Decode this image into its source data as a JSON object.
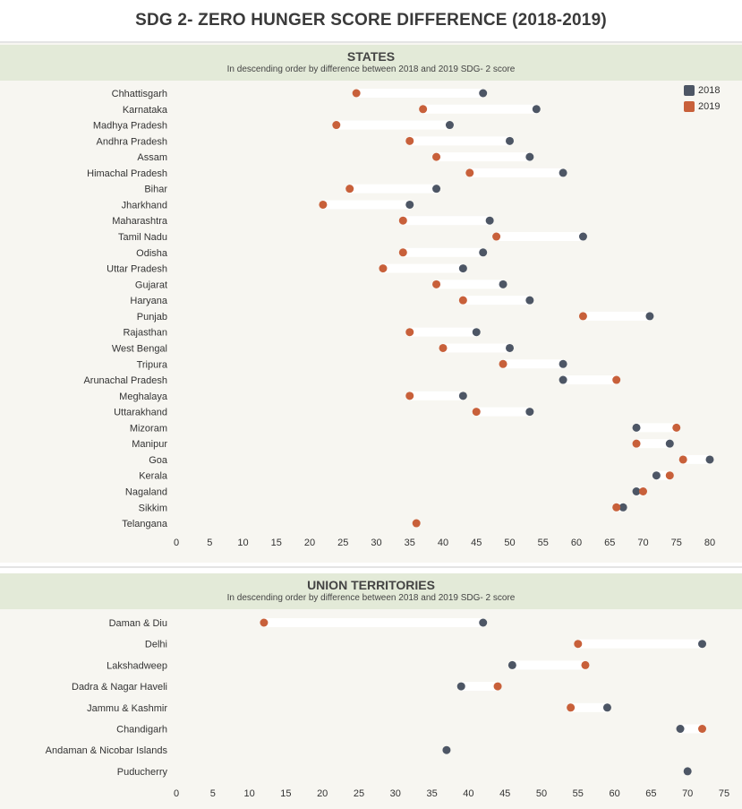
{
  "title": "SDG 2- ZERO HUNGER SCORE DIFFERENCE (2018-2019)",
  "colors": {
    "y2018": "#4d5665",
    "y2019": "#c8603a",
    "connector": "#ffffff"
  },
  "legend": {
    "label_2018": "2018",
    "label_2019": "2019"
  },
  "states_panel": {
    "title": "STATES",
    "subtitle": "In descending order by difference between 2018 and 2019 SDG- 2 score"
  },
  "ut_panel": {
    "title": "UNION TERRITORIES",
    "subtitle": "In descending order by difference between 2018 and 2019 SDG- 2 score"
  },
  "chart_data": [
    {
      "type": "scatter",
      "subtype": "dumbbell",
      "title": "STATES",
      "series": [
        {
          "name": "2018"
        },
        {
          "name": "2019"
        }
      ],
      "xlim": [
        0,
        80
      ],
      "xticks": [
        0,
        5,
        10,
        15,
        20,
        25,
        30,
        35,
        40,
        45,
        50,
        55,
        60,
        65,
        70,
        75,
        80
      ],
      "legend_position": "top-right",
      "grid": false,
      "rows": [
        {
          "label": "Chhattisgarh",
          "y2018": 46,
          "y2019": 27
        },
        {
          "label": "Karnataka",
          "y2018": 54,
          "y2019": 37
        },
        {
          "label": "Madhya Pradesh",
          "y2018": 41,
          "y2019": 24
        },
        {
          "label": "Andhra Pradesh",
          "y2018": 50,
          "y2019": 35
        },
        {
          "label": "Assam",
          "y2018": 53,
          "y2019": 39
        },
        {
          "label": "Himachal Pradesh",
          "y2018": 58,
          "y2019": 44
        },
        {
          "label": "Bihar",
          "y2018": 39,
          "y2019": 26
        },
        {
          "label": "Jharkhand",
          "y2018": 35,
          "y2019": 22
        },
        {
          "label": "Maharashtra",
          "y2018": 47,
          "y2019": 34
        },
        {
          "label": "Tamil Nadu",
          "y2018": 61,
          "y2019": 48
        },
        {
          "label": "Odisha",
          "y2018": 46,
          "y2019": 34
        },
        {
          "label": "Uttar Pradesh",
          "y2018": 43,
          "y2019": 31
        },
        {
          "label": "Gujarat",
          "y2018": 49,
          "y2019": 39
        },
        {
          "label": "Haryana",
          "y2018": 53,
          "y2019": 43
        },
        {
          "label": "Punjab",
          "y2018": 71,
          "y2019": 61
        },
        {
          "label": "Rajasthan",
          "y2018": 45,
          "y2019": 35
        },
        {
          "label": "West Bengal",
          "y2018": 50,
          "y2019": 40
        },
        {
          "label": "Tripura",
          "y2018": 58,
          "y2019": 49
        },
        {
          "label": "Arunachal Pradesh",
          "y2018": 58,
          "y2019": 66
        },
        {
          "label": "Meghalaya",
          "y2018": 43,
          "y2019": 35
        },
        {
          "label": "Uttarakhand",
          "y2018": 53,
          "y2019": 45
        },
        {
          "label": "Mizoram",
          "y2018": 69,
          "y2019": 75
        },
        {
          "label": "Manipur",
          "y2018": 74,
          "y2019": 69
        },
        {
          "label": "Goa",
          "y2018": 80,
          "y2019": 76
        },
        {
          "label": "Kerala",
          "y2018": 72,
          "y2019": 74
        },
        {
          "label": "Nagaland",
          "y2018": 69,
          "y2019": 70
        },
        {
          "label": "Sikkim",
          "y2018": 67,
          "y2019": 66
        },
        {
          "label": "Telangana",
          "y2018": null,
          "y2019": 36
        }
      ]
    },
    {
      "type": "scatter",
      "subtype": "dumbbell",
      "title": "UNION TERRITORIES",
      "series": [
        {
          "name": "2018"
        },
        {
          "name": "2019"
        }
      ],
      "xlim": [
        0,
        75
      ],
      "xticks": [
        0,
        5,
        10,
        15,
        20,
        25,
        30,
        35,
        40,
        45,
        50,
        55,
        60,
        65,
        70,
        75
      ],
      "grid": false,
      "rows": [
        {
          "label": "Daman & Diu",
          "y2018": 42,
          "y2019": 12
        },
        {
          "label": "Delhi",
          "y2018": 72,
          "y2019": 55
        },
        {
          "label": "Lakshadweep",
          "y2018": 46,
          "y2019": 56
        },
        {
          "label": "Dadra & Nagar Haveli",
          "y2018": 39,
          "y2019": 44
        },
        {
          "label": "Jammu & Kashmir",
          "y2018": 59,
          "y2019": 54
        },
        {
          "label": "Chandigarh",
          "y2018": 69,
          "y2019": 72
        },
        {
          "label": "Andaman & Nicobar Islands",
          "y2018": 37,
          "y2019": null
        },
        {
          "label": "Puducherry",
          "y2018": 70,
          "y2019": null
        }
      ]
    }
  ]
}
